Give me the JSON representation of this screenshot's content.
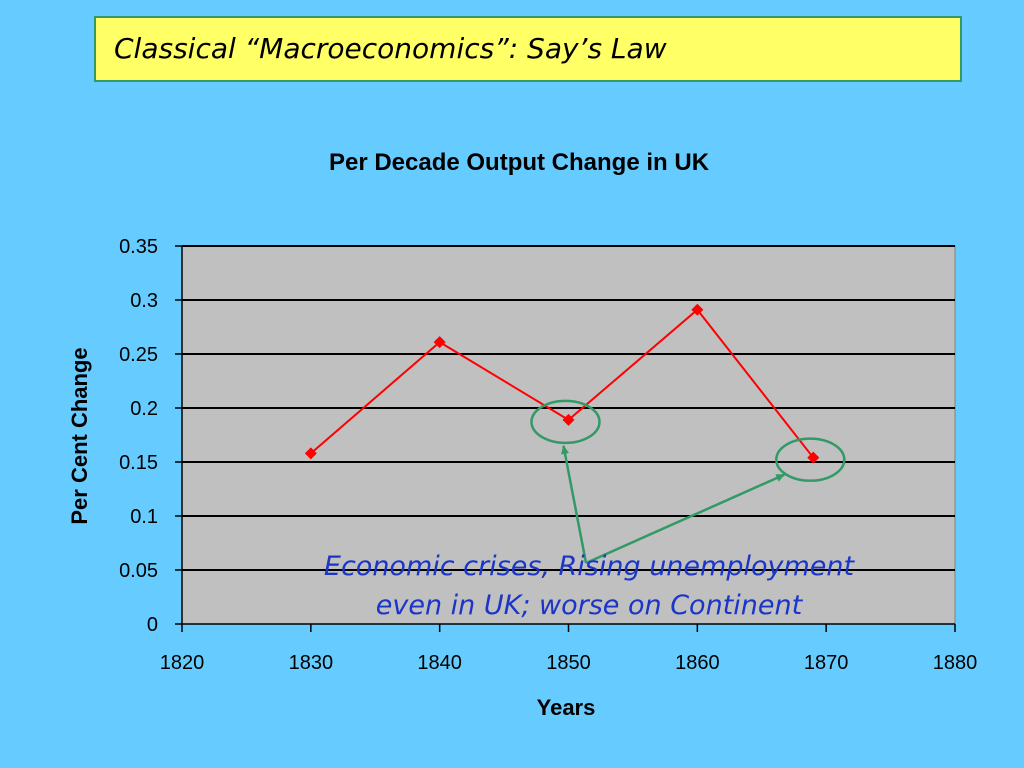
{
  "slide": {
    "title": "Classical “Macroeconomics”: Say’s Law"
  },
  "colors": {
    "background": "#66ccff",
    "title_box": "#ffff66",
    "plot_area": "#c0c0c0",
    "series_line": "#ff0000",
    "annotation_text": "#1a35c8",
    "annotation_marks": "#339966"
  },
  "chart_data": {
    "type": "line",
    "title": "Per Decade Output Change in UK",
    "xlabel": "Years",
    "ylabel": "Per Cent Change",
    "xlim": [
      1820,
      1880
    ],
    "ylim": [
      0,
      0.35
    ],
    "x_ticks": [
      "1820",
      "1830",
      "1840",
      "1850",
      "1860",
      "1870",
      "1880"
    ],
    "y_ticks": [
      "0",
      "0.05",
      "0.1",
      "0.15",
      "0.2",
      "0.25",
      "0.3",
      "0.35"
    ],
    "grid": true,
    "legend": "none",
    "series": [
      {
        "x": [
          1830,
          1840,
          1850,
          1860,
          1869
        ],
        "y": [
          0.158,
          0.261,
          0.189,
          0.291,
          0.154
        ]
      }
    ],
    "annotation": {
      "lines": [
        "Economic crises, Rising unemployment",
        "even in UK; worse on Continent"
      ],
      "highlighted_x": [
        1850,
        1869
      ]
    }
  }
}
